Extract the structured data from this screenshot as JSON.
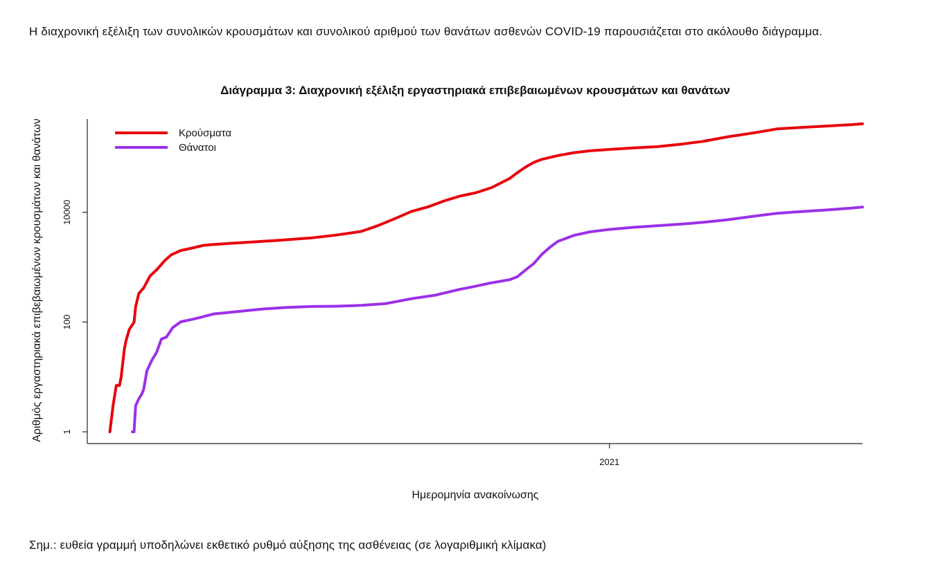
{
  "document": {
    "intro_text": "Η διαχρονική εξέλιξη των συνολικών κρουσμάτων και συνολικού αριθμού των θανάτων ασθενών COVID-19 παρουσιάζεται στο ακόλουθο διάγραμμα.",
    "note_text": "Σημ.: ευθεία γραμμή υποδηλώνει εκθετικό ρυθμό αύξησης της ασθένειας (σε λογαριθμική κλίμακα)"
  },
  "chart_data": {
    "type": "line",
    "title": "Διάγραμμα 3: Διαχρονική εξέλιξη εργαστηριακά επιβεβαιωμένων κρουσμάτων και θανάτων",
    "xlabel": "Ημερομηνία ανακοίνωσης",
    "ylabel": "Αριθμός εργαστηριακά επιβεβαιωμένων κρουσμάτων και θανάτων",
    "y_scale": "log",
    "ylim": [
      1,
      500000
    ],
    "xlim": [
      "2020-02-12",
      "2021-06-07"
    ],
    "y_ticks": [
      {
        "value": 1,
        "label": "1"
      },
      {
        "value": 100,
        "label": "100"
      },
      {
        "value": 10000,
        "label": "10000"
      }
    ],
    "x_ticks": [
      {
        "value": "2021-01-01",
        "label": "2021"
      }
    ],
    "grid": false,
    "legend_position": "top-left",
    "series": [
      {
        "name": "Κρούσματα",
        "color": "#e8000b",
        "points": [
          [
            "2020-02-26",
            1
          ],
          [
            "2020-02-28",
            3
          ],
          [
            "2020-03-01",
            7
          ],
          [
            "2020-03-03",
            7
          ],
          [
            "2020-03-04",
            10
          ],
          [
            "2020-03-06",
            32
          ],
          [
            "2020-03-07",
            45
          ],
          [
            "2020-03-09",
            73
          ],
          [
            "2020-03-12",
            99
          ],
          [
            "2020-03-13",
            190
          ],
          [
            "2020-03-15",
            331
          ],
          [
            "2020-03-18",
            418
          ],
          [
            "2020-03-22",
            695
          ],
          [
            "2020-03-26",
            892
          ],
          [
            "2020-03-31",
            1314
          ],
          [
            "2020-04-04",
            1673
          ],
          [
            "2020-04-10",
            2011
          ],
          [
            "2020-04-17",
            2224
          ],
          [
            "2020-04-24",
            2490
          ],
          [
            "2020-04-30",
            2591
          ],
          [
            "2020-05-01",
            2591
          ],
          [
            "2020-05-10",
            2710
          ],
          [
            "2020-05-25",
            2882
          ],
          [
            "2020-06-10",
            3088
          ],
          [
            "2020-06-30",
            3409
          ],
          [
            "2020-07-15",
            3826
          ],
          [
            "2020-07-31",
            4477
          ],
          [
            "2020-08-10",
            5670
          ],
          [
            "2020-08-20",
            7472
          ],
          [
            "2020-08-31",
            10317
          ],
          [
            "2020-09-10",
            12452
          ],
          [
            "2020-09-20",
            15928
          ],
          [
            "2020-09-30",
            19613
          ],
          [
            "2020-10-10",
            22652
          ],
          [
            "2020-10-20",
            28216
          ],
          [
            "2020-10-31",
            41182
          ],
          [
            "2020-11-05",
            53000
          ],
          [
            "2020-11-10",
            66637
          ],
          [
            "2020-11-15",
            81000
          ],
          [
            "2020-11-20",
            92000
          ],
          [
            "2020-11-30",
            108000
          ],
          [
            "2020-12-10",
            122000
          ],
          [
            "2020-12-20",
            132000
          ],
          [
            "2020-12-31",
            138850
          ],
          [
            "2021-01-15",
            148000
          ],
          [
            "2021-01-31",
            157000
          ],
          [
            "2021-02-15",
            175000
          ],
          [
            "2021-02-28",
            196000
          ],
          [
            "2021-03-15",
            236000
          ],
          [
            "2021-03-31",
            278000
          ],
          [
            "2021-04-15",
            330000
          ],
          [
            "2021-04-30",
            352000
          ],
          [
            "2021-05-15",
            372000
          ],
          [
            "2021-05-31",
            395000
          ],
          [
            "2021-06-07",
            409000
          ]
        ]
      },
      {
        "name": "Θάνατοι",
        "color": "#9b30e8",
        "points": [
          [
            "2020-03-11",
            1
          ],
          [
            "2020-03-12",
            1
          ],
          [
            "2020-03-13",
            3
          ],
          [
            "2020-03-15",
            4
          ],
          [
            "2020-03-17",
            5
          ],
          [
            "2020-03-18",
            6
          ],
          [
            "2020-03-20",
            13
          ],
          [
            "2020-03-23",
            20
          ],
          [
            "2020-03-26",
            28
          ],
          [
            "2020-03-29",
            49
          ],
          [
            "2020-04-01",
            53
          ],
          [
            "2020-04-05",
            79
          ],
          [
            "2020-04-10",
            101
          ],
          [
            "2020-04-16",
            110
          ],
          [
            "2020-04-22",
            121
          ],
          [
            "2020-04-30",
            140
          ],
          [
            "2020-05-15",
            155
          ],
          [
            "2020-05-31",
            173
          ],
          [
            "2020-06-15",
            185
          ],
          [
            "2020-06-30",
            192
          ],
          [
            "2020-07-15",
            194
          ],
          [
            "2020-07-31",
            201
          ],
          [
            "2020-08-15",
            216
          ],
          [
            "2020-08-31",
            266
          ],
          [
            "2020-09-15",
            309
          ],
          [
            "2020-09-30",
            393
          ],
          [
            "2020-10-10",
            449
          ],
          [
            "2020-10-20",
            520
          ],
          [
            "2020-10-31",
            590
          ],
          [
            "2020-11-05",
            673
          ],
          [
            "2020-11-10",
            892
          ],
          [
            "2020-11-15",
            1160
          ],
          [
            "2020-11-20",
            1700
          ],
          [
            "2020-11-25",
            2300
          ],
          [
            "2020-11-30",
            2962
          ],
          [
            "2020-12-10",
            3800
          ],
          [
            "2020-12-20",
            4400
          ],
          [
            "2020-12-31",
            4838
          ],
          [
            "2021-01-15",
            5300
          ],
          [
            "2021-01-31",
            5700
          ],
          [
            "2021-02-15",
            6100
          ],
          [
            "2021-02-28",
            6557
          ],
          [
            "2021-03-15",
            7300
          ],
          [
            "2021-03-31",
            8430
          ],
          [
            "2021-04-15",
            9600
          ],
          [
            "2021-04-30",
            10300
          ],
          [
            "2021-05-15",
            11000
          ],
          [
            "2021-05-31",
            11900
          ],
          [
            "2021-06-07",
            12400
          ]
        ]
      }
    ]
  }
}
